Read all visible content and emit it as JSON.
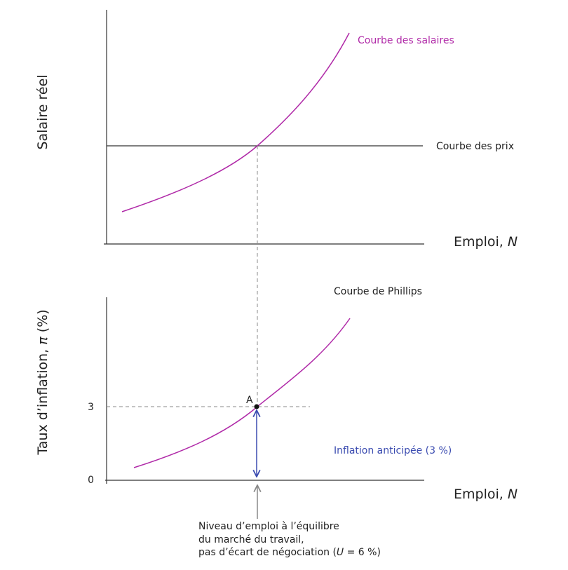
{
  "top_panel": {
    "y_axis_label": "Salaire réel",
    "x_axis_label": {
      "text": "Emploi,",
      "variable": "N"
    },
    "wage_curve_label": "Courbe des salaires",
    "price_curve_label": "Courbe des prix"
  },
  "bottom_panel": {
    "y_axis_label": {
      "text": "Taux d’inflation,",
      "variable": "π",
      "unit": "(%)"
    },
    "x_axis_label": {
      "text": "Emploi,",
      "variable": "N"
    },
    "y_ticks": [
      "3",
      "0"
    ],
    "phillips_curve_label": "Courbe de Phillips",
    "point_label": "A",
    "expected_inflation_label": "Inflation anticipée (3 %)",
    "annotation": {
      "line1": "Niveau d’emploi à l’équilibre",
      "line2": "du marché du travail,",
      "line3_start": "pas d’écart de négociation (",
      "line3_var": "U",
      "line3_end": " = 6 %)"
    }
  }
}
